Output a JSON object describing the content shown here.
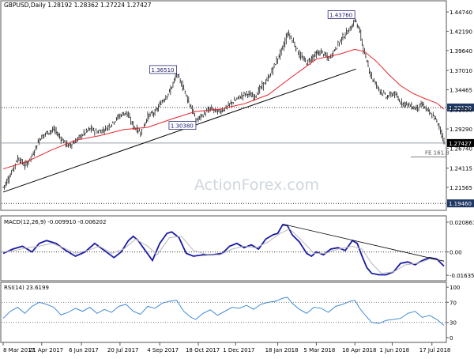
{
  "chart_data": [
    {
      "type": "candlestick",
      "panel": "price",
      "symbol_header": "GBPUSD,Daily  1.28192 1.28362 1.27224 1.27427",
      "watermark": "ActionForex.com",
      "ylim": [
        1.1875,
        1.46
      ],
      "y_ticks": [
        "1.44740",
        "1.42190",
        "1.39640",
        "1.37010",
        "1.34465",
        "1.31830",
        "1.29290",
        "1.26740",
        "1.24115",
        "1.21565"
      ],
      "y_tick_values": [
        1.4474,
        1.4219,
        1.3964,
        1.3701,
        1.34465,
        1.3183,
        1.2929,
        1.2674,
        1.24115,
        1.21565
      ],
      "x_labels": [
        "8 Mar 2017",
        "21 Apr 2017",
        "6 Jun 2017",
        "20 Jul 2017",
        "4 Sep 2017",
        "18 Oct 2017",
        "1 Dec 2017",
        "18 Jan 2018",
        "5 Mar 2018",
        "18 Apr 2018",
        "1 Jun 2018",
        "17 Jul 2018"
      ],
      "x_label_index": [
        0,
        32,
        65,
        97,
        130,
        162,
        193,
        228,
        260,
        292,
        323,
        356
      ],
      "close_path": [
        [
          0,
          1.216
        ],
        [
          6,
          1.233
        ],
        [
          12,
          1.255
        ],
        [
          18,
          1.244
        ],
        [
          24,
          1.258
        ],
        [
          30,
          1.28
        ],
        [
          36,
          1.288
        ],
        [
          42,
          1.292
        ],
        [
          48,
          1.28
        ],
        [
          54,
          1.27
        ],
        [
          60,
          1.277
        ],
        [
          66,
          1.286
        ],
        [
          72,
          1.293
        ],
        [
          78,
          1.289
        ],
        [
          84,
          1.292
        ],
        [
          90,
          1.3
        ],
        [
          96,
          1.31
        ],
        [
          102,
          1.315
        ],
        [
          108,
          1.296
        ],
        [
          114,
          1.288
        ],
        [
          120,
          1.31
        ],
        [
          126,
          1.315
        ],
        [
          132,
          1.33
        ],
        [
          138,
          1.342
        ],
        [
          144,
          1.3651
        ],
        [
          150,
          1.345
        ],
        [
          156,
          1.32
        ],
        [
          160,
          1.3038
        ],
        [
          166,
          1.312
        ],
        [
          172,
          1.32
        ],
        [
          178,
          1.315
        ],
        [
          184,
          1.32
        ],
        [
          190,
          1.328
        ],
        [
          196,
          1.335
        ],
        [
          202,
          1.34
        ],
        [
          208,
          1.335
        ],
        [
          214,
          1.348
        ],
        [
          220,
          1.36
        ],
        [
          226,
          1.38
        ],
        [
          232,
          1.4
        ],
        [
          236,
          1.42
        ],
        [
          240,
          1.41
        ],
        [
          246,
          1.39
        ],
        [
          252,
          1.38
        ],
        [
          258,
          1.39
        ],
        [
          264,
          1.395
        ],
        [
          270,
          1.385
        ],
        [
          276,
          1.4
        ],
        [
          282,
          1.415
        ],
        [
          288,
          1.425
        ],
        [
          292,
          1.4376
        ],
        [
          296,
          1.42
        ],
        [
          300,
          1.39
        ],
        [
          306,
          1.36
        ],
        [
          312,
          1.345
        ],
        [
          318,
          1.335
        ],
        [
          324,
          1.34
        ],
        [
          330,
          1.328
        ],
        [
          336,
          1.325
        ],
        [
          342,
          1.32
        ],
        [
          348,
          1.325
        ],
        [
          354,
          1.313
        ],
        [
          358,
          1.308
        ],
        [
          362,
          1.295
        ],
        [
          366,
          1.2743
        ]
      ],
      "series": [
        {
          "name": "SMA",
          "color": "#e8262b",
          "values": [
            [
              0,
              1.24
            ],
            [
              20,
              1.25
            ],
            [
              40,
              1.265
            ],
            [
              60,
              1.278
            ],
            [
              80,
              1.284
            ],
            [
              100,
              1.292
            ],
            [
              120,
              1.295
            ],
            [
              140,
              1.306
            ],
            [
              160,
              1.316
            ],
            [
              180,
              1.319
            ],
            [
              200,
              1.326
            ],
            [
              220,
              1.338
            ],
            [
              240,
              1.362
            ],
            [
              260,
              1.385
            ],
            [
              280,
              1.392
            ],
            [
              292,
              1.398
            ],
            [
              300,
              1.395
            ],
            [
              310,
              1.382
            ],
            [
              320,
              1.365
            ],
            [
              330,
              1.35
            ],
            [
              340,
              1.34
            ],
            [
              350,
              1.333
            ],
            [
              360,
              1.327
            ],
            [
              366,
              1.319
            ]
          ]
        }
      ],
      "annotations": [
        {
          "label": "1.36510",
          "x": 144,
          "y": 1.3651
        },
        {
          "label": "1.30380",
          "x": 160,
          "y": 1.3038
        },
        {
          "label": "1.43760",
          "x": 292,
          "y": 1.4376
        }
      ],
      "trendline": {
        "from": [
          0,
          1.2095
        ],
        "to": [
          293,
          1.372
        ]
      },
      "levels": [
        {
          "label": "1.32120",
          "value": 1.3212,
          "style": "dotted",
          "badge": "#1f3864"
        },
        {
          "label": "1.27427",
          "value": 1.27427,
          "style": "solid-gray",
          "badge": "#000000"
        },
        {
          "label": "1.19460",
          "value": 1.1946,
          "style": "dotted",
          "badge": "#1f3864"
        }
      ],
      "fe_label": "FE 161.8",
      "fe_value": 1.261
    },
    {
      "type": "line",
      "panel": "macd",
      "header": "MACD(12,26,9) -0.009910 -0.006202",
      "ylim": [
        -0.0185,
        0.0225
      ],
      "y_ticks": [
        "0.020861",
        "0.00",
        "-0.016357"
      ],
      "y_tick_values": [
        0.020861,
        0.0,
        -0.016357
      ],
      "series": [
        {
          "name": "MACD",
          "color": "#1a1aa6",
          "values": [
            [
              0,
              -0.001
            ],
            [
              8,
              0.002
            ],
            [
              16,
              0.004
            ],
            [
              24,
              0.0
            ],
            [
              30,
              0.006
            ],
            [
              36,
              0.008
            ],
            [
              44,
              0.006
            ],
            [
              52,
              0.001
            ],
            [
              60,
              -0.003
            ],
            [
              68,
              0.0
            ],
            [
              76,
              0.006
            ],
            [
              84,
              0.001
            ],
            [
              92,
              -0.004
            ],
            [
              98,
              0.0
            ],
            [
              104,
              0.008
            ],
            [
              108,
              0.011
            ],
            [
              112,
              0.008
            ],
            [
              118,
              0.001
            ],
            [
              124,
              -0.006
            ],
            [
              130,
              0.006
            ],
            [
              136,
              0.013
            ],
            [
              140,
              0.014
            ],
            [
              146,
              0.01
            ],
            [
              152,
              -0.001
            ],
            [
              158,
              -0.003
            ],
            [
              166,
              -0.002
            ],
            [
              174,
              -0.002
            ],
            [
              182,
              -0.001
            ],
            [
              188,
              0.004
            ],
            [
              194,
              0.006
            ],
            [
              200,
              0.003
            ],
            [
              206,
              0.005
            ],
            [
              212,
              0.002
            ],
            [
              218,
              0.009
            ],
            [
              224,
              0.012
            ],
            [
              228,
              0.013
            ],
            [
              232,
              0.019
            ],
            [
              236,
              0.0185
            ],
            [
              240,
              0.012
            ],
            [
              246,
              0.007
            ],
            [
              252,
              -0.001
            ],
            [
              256,
              -0.003
            ],
            [
              260,
              0.0
            ],
            [
              266,
              -0.002
            ],
            [
              272,
              0.002
            ],
            [
              278,
              0.003
            ],
            [
              284,
              0.001
            ],
            [
              290,
              0.008
            ],
            [
              294,
              0.006
            ],
            [
              298,
              -0.003
            ],
            [
              302,
              -0.011
            ],
            [
              306,
              -0.015
            ],
            [
              312,
              -0.016
            ],
            [
              318,
              -0.016
            ],
            [
              324,
              -0.014
            ],
            [
              330,
              -0.008
            ],
            [
              336,
              -0.007
            ],
            [
              342,
              -0.009
            ],
            [
              348,
              -0.006
            ],
            [
              354,
              -0.004
            ],
            [
              360,
              -0.005
            ],
            [
              366,
              -0.0099
            ]
          ]
        },
        {
          "name": "Signal",
          "color": "#b8b8b8",
          "values": [
            [
              0,
              0.0
            ],
            [
              10,
              0.001
            ],
            [
              20,
              0.003
            ],
            [
              30,
              0.004
            ],
            [
              40,
              0.006
            ],
            [
              50,
              0.003
            ],
            [
              60,
              -0.001
            ],
            [
              70,
              0.001
            ],
            [
              80,
              0.004
            ],
            [
              90,
              -0.001
            ],
            [
              100,
              0.002
            ],
            [
              110,
              0.009
            ],
            [
              120,
              0.004
            ],
            [
              128,
              -0.002
            ],
            [
              138,
              0.01
            ],
            [
              148,
              0.011
            ],
            [
              158,
              0.001
            ],
            [
              170,
              -0.002
            ],
            [
              180,
              -0.002
            ],
            [
              190,
              0.002
            ],
            [
              200,
              0.004
            ],
            [
              210,
              0.003
            ],
            [
              220,
              0.007
            ],
            [
              230,
              0.013
            ],
            [
              238,
              0.016
            ],
            [
              248,
              0.008
            ],
            [
              258,
              -0.001
            ],
            [
              268,
              -0.001
            ],
            [
              278,
              0.002
            ],
            [
              290,
              0.004
            ],
            [
              298,
              0.002
            ],
            [
              306,
              -0.008
            ],
            [
              314,
              -0.015
            ],
            [
              324,
              -0.014
            ],
            [
              334,
              -0.009
            ],
            [
              344,
              -0.008
            ],
            [
              354,
              -0.005
            ],
            [
              366,
              -0.0062
            ]
          ]
        }
      ],
      "trendline": {
        "from": [
          232,
          0.0195
        ],
        "to": [
          366,
          -0.0065
        ]
      }
    },
    {
      "type": "line",
      "panel": "rsi",
      "header": "RSI(14) 23.6199",
      "ylim": [
        -5,
        105
      ],
      "y_ticks": [
        "100",
        "70",
        "30",
        "0"
      ],
      "y_tick_values": [
        100,
        70,
        30,
        0
      ],
      "series": [
        {
          "name": "RSI",
          "color": "#2d7fd3",
          "values": [
            [
              0,
              38
            ],
            [
              6,
              52
            ],
            [
              12,
              60
            ],
            [
              18,
              48
            ],
            [
              24,
              62
            ],
            [
              30,
              70
            ],
            [
              36,
              66
            ],
            [
              42,
              60
            ],
            [
              48,
              45
            ],
            [
              54,
              50
            ],
            [
              60,
              58
            ],
            [
              66,
              52
            ],
            [
              72,
              60
            ],
            [
              78,
              48
            ],
            [
              84,
              56
            ],
            [
              90,
              50
            ],
            [
              96,
              62
            ],
            [
              102,
              66
            ],
            [
              108,
              52
            ],
            [
              114,
              46
            ],
            [
              120,
              62
            ],
            [
              126,
              58
            ],
            [
              132,
              68
            ],
            [
              138,
              72
            ],
            [
              144,
              74
            ],
            [
              150,
              52
            ],
            [
              156,
              40
            ],
            [
              160,
              36
            ],
            [
              166,
              48
            ],
            [
              172,
              55
            ],
            [
              178,
              44
            ],
            [
              184,
              52
            ],
            [
              190,
              60
            ],
            [
              196,
              58
            ],
            [
              202,
              64
            ],
            [
              208,
              56
            ],
            [
              214,
              66
            ],
            [
              220,
              70
            ],
            [
              226,
              72
            ],
            [
              232,
              78
            ],
            [
              236,
              80
            ],
            [
              240,
              68
            ],
            [
              246,
              56
            ],
            [
              252,
              48
            ],
            [
              258,
              60
            ],
            [
              264,
              58
            ],
            [
              270,
              50
            ],
            [
              276,
              62
            ],
            [
              282,
              66
            ],
            [
              288,
              72
            ],
            [
              292,
              74
            ],
            [
              296,
              58
            ],
            [
              300,
              46
            ],
            [
              306,
              30
            ],
            [
              312,
              28
            ],
            [
              318,
              34
            ],
            [
              324,
              36
            ],
            [
              330,
              38
            ],
            [
              336,
              48
            ],
            [
              342,
              52
            ],
            [
              348,
              40
            ],
            [
              354,
              44
            ],
            [
              360,
              36
            ],
            [
              366,
              24
            ]
          ]
        }
      ]
    }
  ]
}
